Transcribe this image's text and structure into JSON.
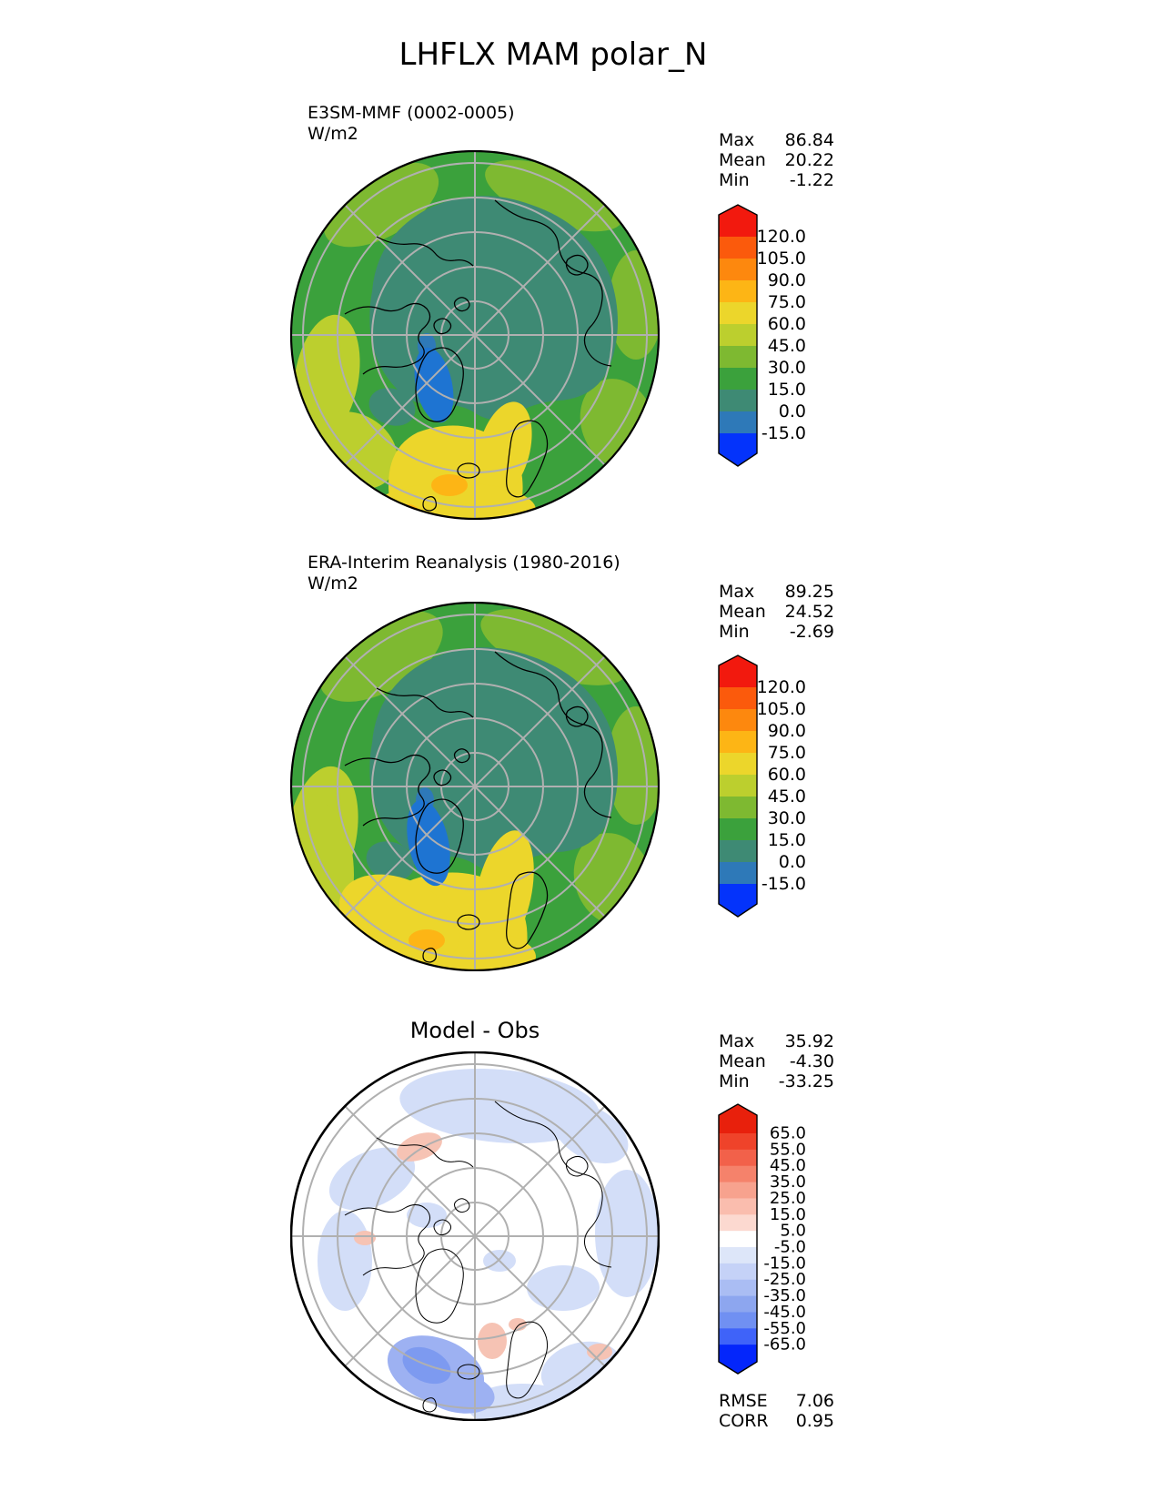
{
  "title": "LHFLX MAM polar_N",
  "panels": [
    {
      "name": "E3SM-MMF (0002-0005)",
      "units": "W/m2",
      "stats": [
        {
          "label": "Max",
          "value": "86.84"
        },
        {
          "label": "Mean",
          "value": "20.22"
        },
        {
          "label": "Min",
          "value": "-1.22"
        }
      ],
      "colorbar": {
        "ticks": [
          "120.0",
          "105.0",
          "90.0",
          "75.0",
          "60.0",
          "45.0",
          "30.0",
          "15.0",
          "0.0",
          "-15.0"
        ],
        "colors": [
          "#f2190e",
          "#fb5a0c",
          "#fd880e",
          "#fdb515",
          "#ecd62b",
          "#bccf2e",
          "#7eb931",
          "#3ba13c",
          "#3e8a74",
          "#2e79b8",
          "#0433fb"
        ]
      }
    },
    {
      "name": "ERA-Interim Reanalysis (1980-2016)",
      "units": "W/m2",
      "stats": [
        {
          "label": "Max",
          "value": "89.25"
        },
        {
          "label": "Mean",
          "value": "24.52"
        },
        {
          "label": "Min",
          "value": "-2.69"
        }
      ],
      "colorbar": {
        "ticks": [
          "120.0",
          "105.0",
          "90.0",
          "75.0",
          "60.0",
          "45.0",
          "30.0",
          "15.0",
          "0.0",
          "-15.0"
        ],
        "colors": [
          "#f2190e",
          "#fb5a0c",
          "#fd880e",
          "#fdb515",
          "#ecd62b",
          "#bccf2e",
          "#7eb931",
          "#3ba13c",
          "#3e8a74",
          "#2e79b8",
          "#0433fb"
        ]
      }
    },
    {
      "name": "Model - Obs",
      "units": "",
      "stats": [
        {
          "label": "Max",
          "value": "35.92"
        },
        {
          "label": "Mean",
          "value": "-4.30"
        },
        {
          "label": "Min",
          "value": "-33.25"
        }
      ],
      "extra_stats": [
        {
          "label": "RMSE",
          "value": "7.06"
        },
        {
          "label": "CORR",
          "value": "0.95"
        }
      ],
      "colorbar": {
        "ticks": [
          "65.0",
          "55.0",
          "45.0",
          "35.0",
          "25.0",
          "15.0",
          "5.0",
          "-5.0",
          "-15.0",
          "-25.0",
          "-35.0",
          "-45.0",
          "-55.0",
          "-65.0"
        ],
        "colors": [
          "#e8200c",
          "#ef432a",
          "#f2614a",
          "#f5826b",
          "#f7a28e",
          "#fabdae",
          "#fcd9d0",
          "#ffffff",
          "#dde6f9",
          "#c5d2f7",
          "#aabdf3",
          "#8da6ef",
          "#7090f2",
          "#3f63f9",
          "#0426fb"
        ]
      }
    }
  ],
  "chart_data": {
    "type": "heatmap",
    "subtype": "polar_stereographic_contour_map_set",
    "variable": "LHFLX",
    "season": "MAM",
    "region": "polar_N",
    "title": "LHFLX MAM polar_N",
    "units": "W/m2",
    "legend_position": "right-of-each-map",
    "grid": "polar graticule, 5 latitude rings, 8 longitude spokes",
    "panels": [
      {
        "name": "E3SM-MMF (0002-0005)",
        "role": "model",
        "units": "W/m2",
        "max": 86.84,
        "mean": 20.22,
        "min": -1.22,
        "contour_levels": [
          -15.0,
          0.0,
          15.0,
          30.0,
          45.0,
          60.0,
          75.0,
          90.0,
          105.0,
          120.0
        ],
        "colormap_low_to_high": [
          "#0433fb",
          "#2e79b8",
          "#3e8a74",
          "#3ba13c",
          "#7eb931",
          "#bccf2e",
          "#ecd62b",
          "#fdb515",
          "#fd880e",
          "#fb5a0c",
          "#f2190e"
        ]
      },
      {
        "name": "ERA-Interim Reanalysis (1980-2016)",
        "role": "observation",
        "units": "W/m2",
        "max": 89.25,
        "mean": 24.52,
        "min": -2.69,
        "contour_levels": [
          -15.0,
          0.0,
          15.0,
          30.0,
          45.0,
          60.0,
          75.0,
          90.0,
          105.0,
          120.0
        ],
        "colormap_low_to_high": [
          "#0433fb",
          "#2e79b8",
          "#3e8a74",
          "#3ba13c",
          "#7eb931",
          "#bccf2e",
          "#ecd62b",
          "#fdb515",
          "#fd880e",
          "#fb5a0c",
          "#f2190e"
        ]
      },
      {
        "name": "Model - Obs",
        "role": "difference",
        "units": "W/m2",
        "max": 35.92,
        "mean": -4.3,
        "min": -33.25,
        "rmse": 7.06,
        "corr": 0.95,
        "contour_levels": [
          -65.0,
          -55.0,
          -45.0,
          -35.0,
          -25.0,
          -15.0,
          -5.0,
          5.0,
          15.0,
          25.0,
          35.0,
          45.0,
          55.0,
          65.0
        ],
        "colormap_low_to_high": [
          "#0426fb",
          "#3f63f9",
          "#7090f2",
          "#8da6ef",
          "#aabdf3",
          "#c5d2f7",
          "#dde6f9",
          "#ffffff",
          "#fcd9d0",
          "#fabdae",
          "#f7a28e",
          "#f5826b",
          "#f2614a",
          "#ef432a",
          "#e8200c"
        ]
      }
    ]
  }
}
